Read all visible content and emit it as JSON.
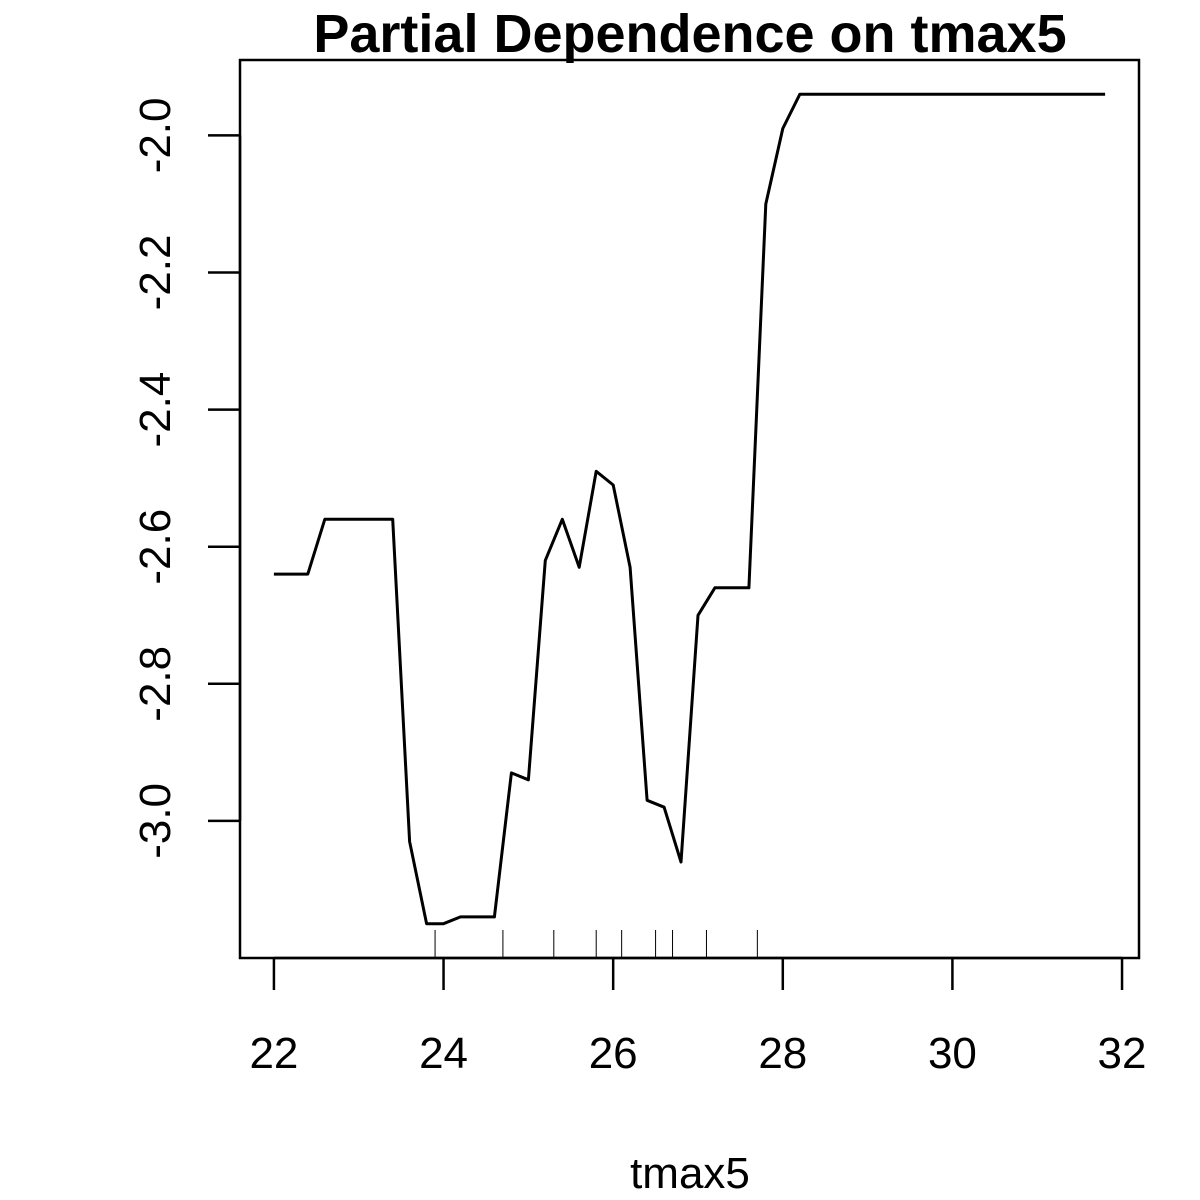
{
  "chart_data": {
    "type": "line",
    "title": "Partial Dependence on tmax5",
    "xlabel": "tmax5",
    "ylabel": "",
    "xlim": [
      21.6,
      32.2
    ],
    "ylim": [
      -3.2,
      -1.89
    ],
    "x_ticks": [
      22,
      24,
      26,
      28,
      30,
      32
    ],
    "x_tick_labels": [
      "22",
      "24",
      "26",
      "28",
      "30",
      "32"
    ],
    "y_ticks": [
      -3.0,
      -2.8,
      -2.6,
      -2.4,
      -2.2,
      -2.0
    ],
    "y_tick_labels": [
      "-3.0",
      "-2.8",
      "-2.6",
      "-2.4",
      "-2.2",
      "-2.0"
    ],
    "grid": false,
    "legend": "none",
    "line_color": "#000000",
    "series": [
      {
        "x": [
          22.0,
          22.4,
          22.6,
          23.2,
          23.4,
          23.6,
          23.8,
          24.0,
          24.2,
          24.6,
          24.8,
          25.0,
          25.2,
          25.4,
          25.6,
          25.8,
          26.0,
          26.2,
          26.4,
          26.6,
          26.8,
          27.0,
          27.2,
          27.4,
          27.6,
          27.8,
          28.0,
          28.2,
          28.6,
          28.8,
          31.8
        ],
        "y": [
          -2.64,
          -2.64,
          -2.56,
          -2.56,
          -2.56,
          -3.03,
          -3.15,
          -3.15,
          -3.14,
          -3.14,
          -2.93,
          -2.94,
          -2.62,
          -2.56,
          -2.63,
          -2.49,
          -2.51,
          -2.63,
          -2.97,
          -2.98,
          -3.06,
          -2.7,
          -2.66,
          -2.66,
          -2.66,
          -2.1,
          -1.99,
          -1.94,
          -1.94,
          -1.94,
          -1.94
        ]
      }
    ],
    "rug": [
      23.9,
      24.7,
      25.3,
      25.8,
      26.1,
      26.5,
      26.7,
      27.1,
      27.7
    ]
  }
}
